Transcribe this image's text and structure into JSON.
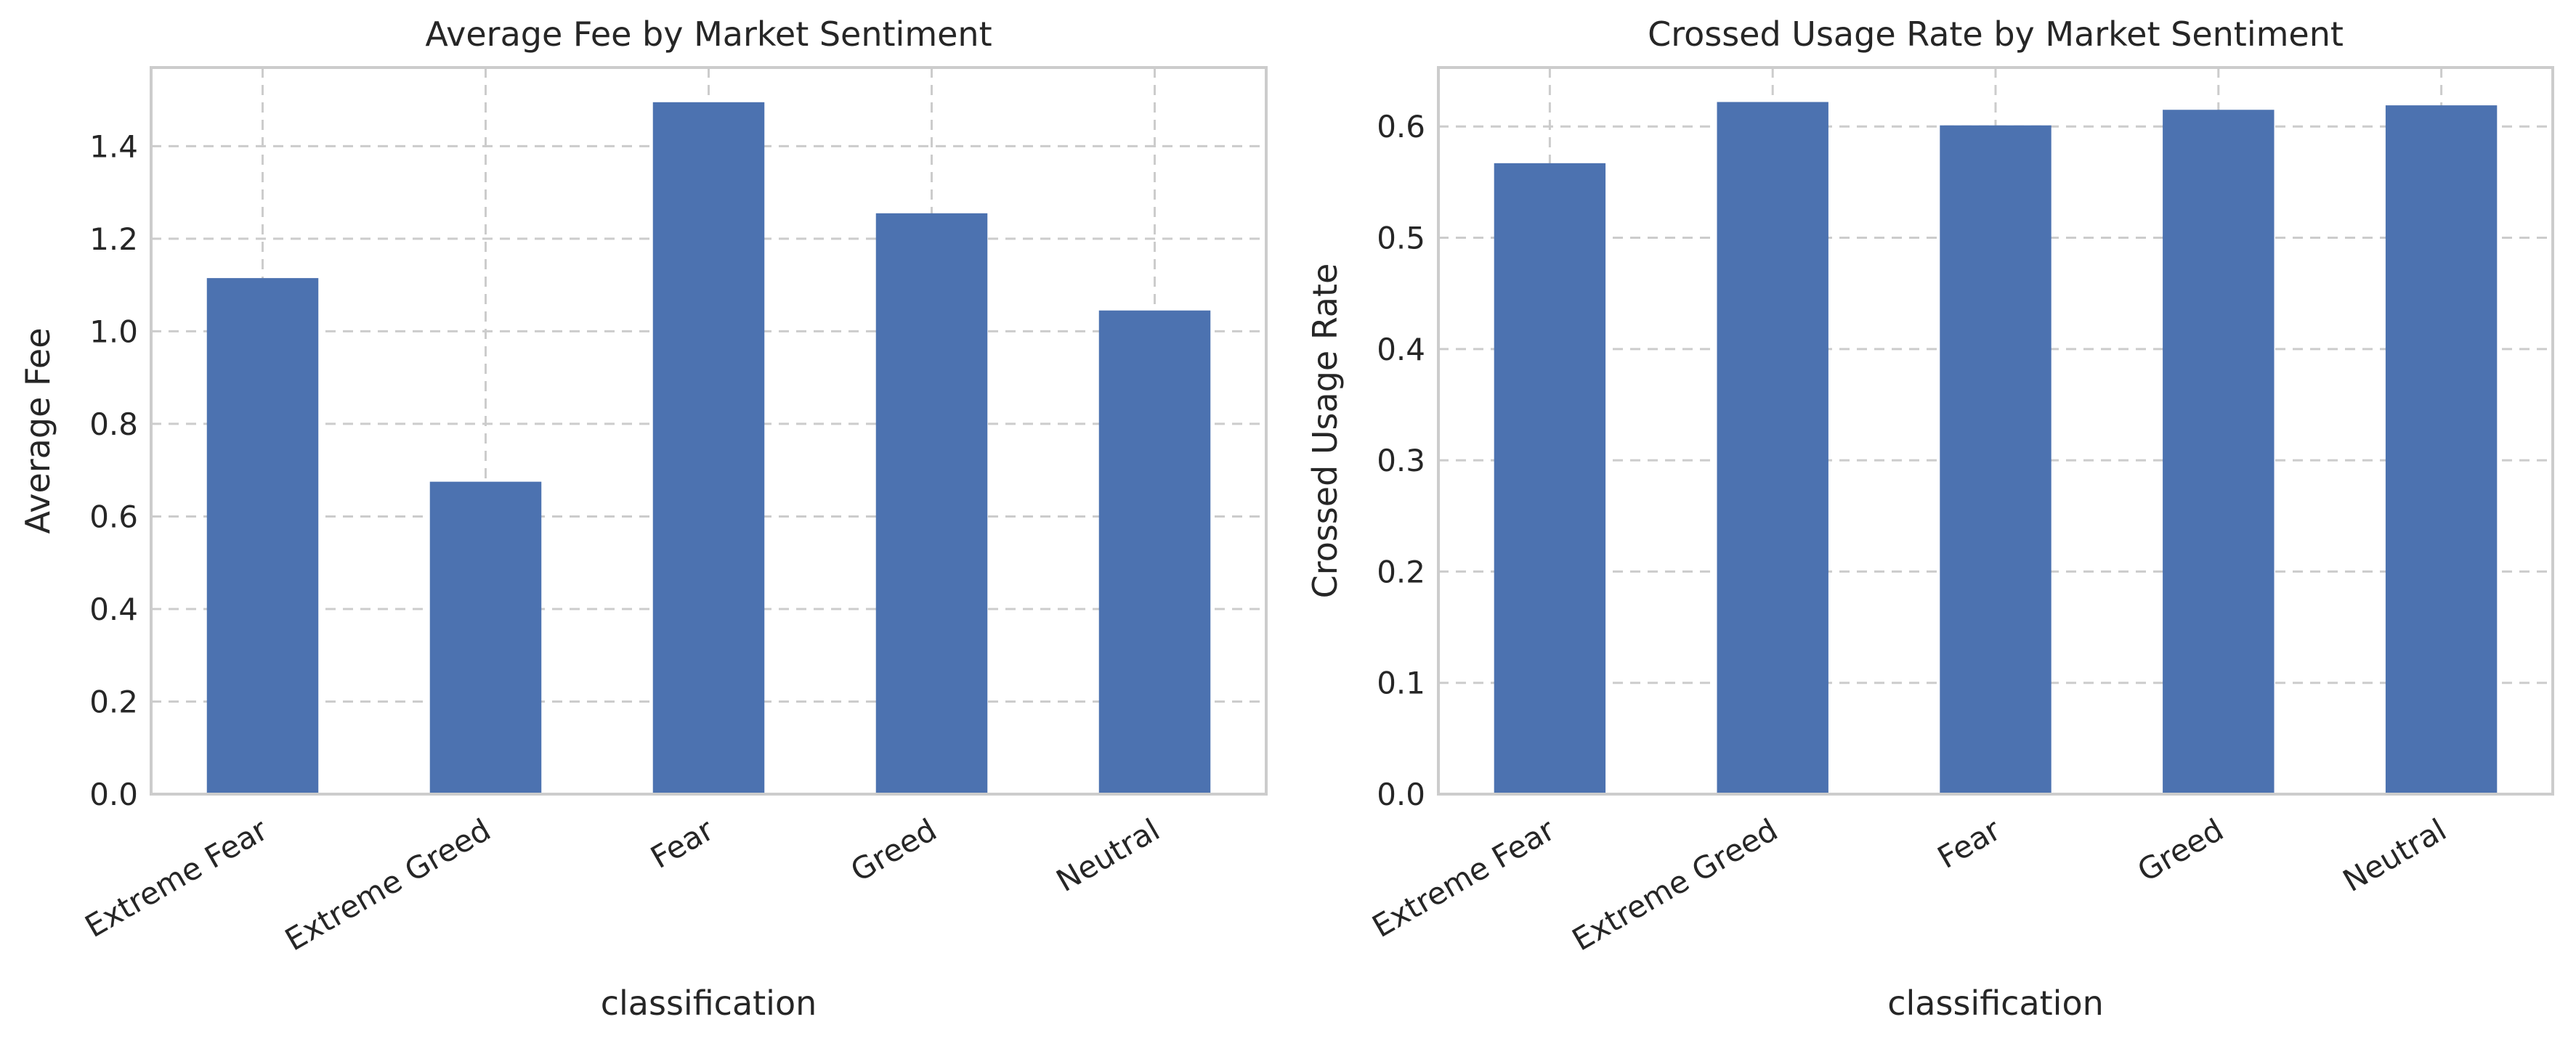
{
  "chart_data": [
    {
      "type": "bar",
      "title": "Average Fee by Market Sentiment",
      "xlabel": "classification",
      "ylabel": "Average Fee",
      "categories": [
        "Extreme Fear",
        "Extreme Greed",
        "Fear",
        "Greed",
        "Neutral"
      ],
      "values": [
        1.115,
        0.675,
        1.495,
        1.255,
        1.045
      ],
      "ylim": [
        0,
        1.57
      ],
      "yticks": [
        "0.0",
        "0.2",
        "0.4",
        "0.6",
        "0.8",
        "1.0",
        "1.2",
        "1.4"
      ],
      "grid": true,
      "bar_color": "#4c72b0"
    },
    {
      "type": "bar",
      "title": "Crossed Usage Rate by Market Sentiment",
      "xlabel": "classification",
      "ylabel": "Crossed Usage Rate",
      "categories": [
        "Extreme Fear",
        "Extreme Greed",
        "Fear",
        "Greed",
        "Neutral"
      ],
      "values": [
        0.567,
        0.622,
        0.601,
        0.615,
        0.619
      ],
      "ylim": [
        0,
        0.653
      ],
      "yticks": [
        "0.0",
        "0.1",
        "0.2",
        "0.3",
        "0.4",
        "0.5",
        "0.6"
      ],
      "grid": true,
      "bar_color": "#4c72b0"
    }
  ]
}
